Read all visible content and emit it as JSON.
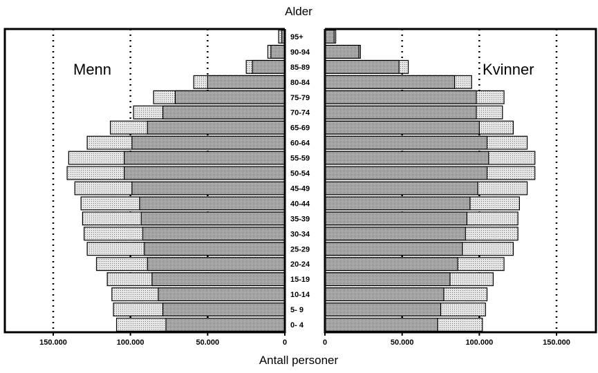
{
  "chart_data": {
    "type": "bar",
    "title": "Alder",
    "xlabel": "Antall personer",
    "orientation": "horizontal-pyramid",
    "categories": [
      "0- 4",
      "5- 9",
      "10-14",
      "15-19",
      "20-24",
      "25-29",
      "30-34",
      "35-39",
      "40-44",
      "45-49",
      "50-54",
      "55-59",
      "60-64",
      "65-69",
      "70-74",
      "75-79",
      "80-84",
      "85-89",
      "90-94",
      "95+"
    ],
    "series": [
      {
        "name": "Menn",
        "side": "left",
        "layer": "outer",
        "values": [
          109000,
          111000,
          112000,
          115000,
          122000,
          128000,
          130000,
          131000,
          132000,
          136000,
          141000,
          140000,
          128000,
          113000,
          98000,
          85000,
          59000,
          25000,
          11000,
          4000
        ]
      },
      {
        "name": "Menn",
        "side": "left",
        "layer": "inner",
        "values": [
          77000,
          79000,
          82000,
          86000,
          89000,
          91000,
          92000,
          93000,
          94000,
          99000,
          104000,
          104000,
          99000,
          89000,
          79000,
          71000,
          50000,
          21000,
          9000,
          2000
        ]
      },
      {
        "name": "Kvinner",
        "side": "right",
        "layer": "outer",
        "values": [
          102000,
          104000,
          105000,
          109000,
          116000,
          122000,
          125000,
          125000,
          126000,
          131000,
          136000,
          136000,
          131000,
          122000,
          115000,
          116000,
          95000,
          54000,
          23000,
          7000
        ]
      },
      {
        "name": "Kvinner",
        "side": "right",
        "layer": "inner",
        "values": [
          73000,
          75000,
          77000,
          81000,
          86000,
          89000,
          91000,
          92000,
          94000,
          99000,
          105000,
          106000,
          105000,
          100000,
          98000,
          98000,
          84000,
          48000,
          22000,
          6000
        ]
      }
    ],
    "xlim": [
      0,
      175000
    ],
    "ticks": [
      0,
      50000,
      100000,
      150000
    ],
    "tick_labels_left": [
      "150.000",
      "100.000",
      "50.000",
      "0"
    ],
    "tick_labels_right": [
      "0",
      "50.000",
      "100.000",
      "150.000"
    ],
    "gridlines": "dotted at 50.000, 100.000 and 150.000",
    "colors": {
      "outer_fill": "#e2e2e2",
      "inner_fill": "#a9a9a9",
      "stroke": "#000000"
    },
    "left_label": "Menn",
    "right_label": "Kvinner"
  }
}
